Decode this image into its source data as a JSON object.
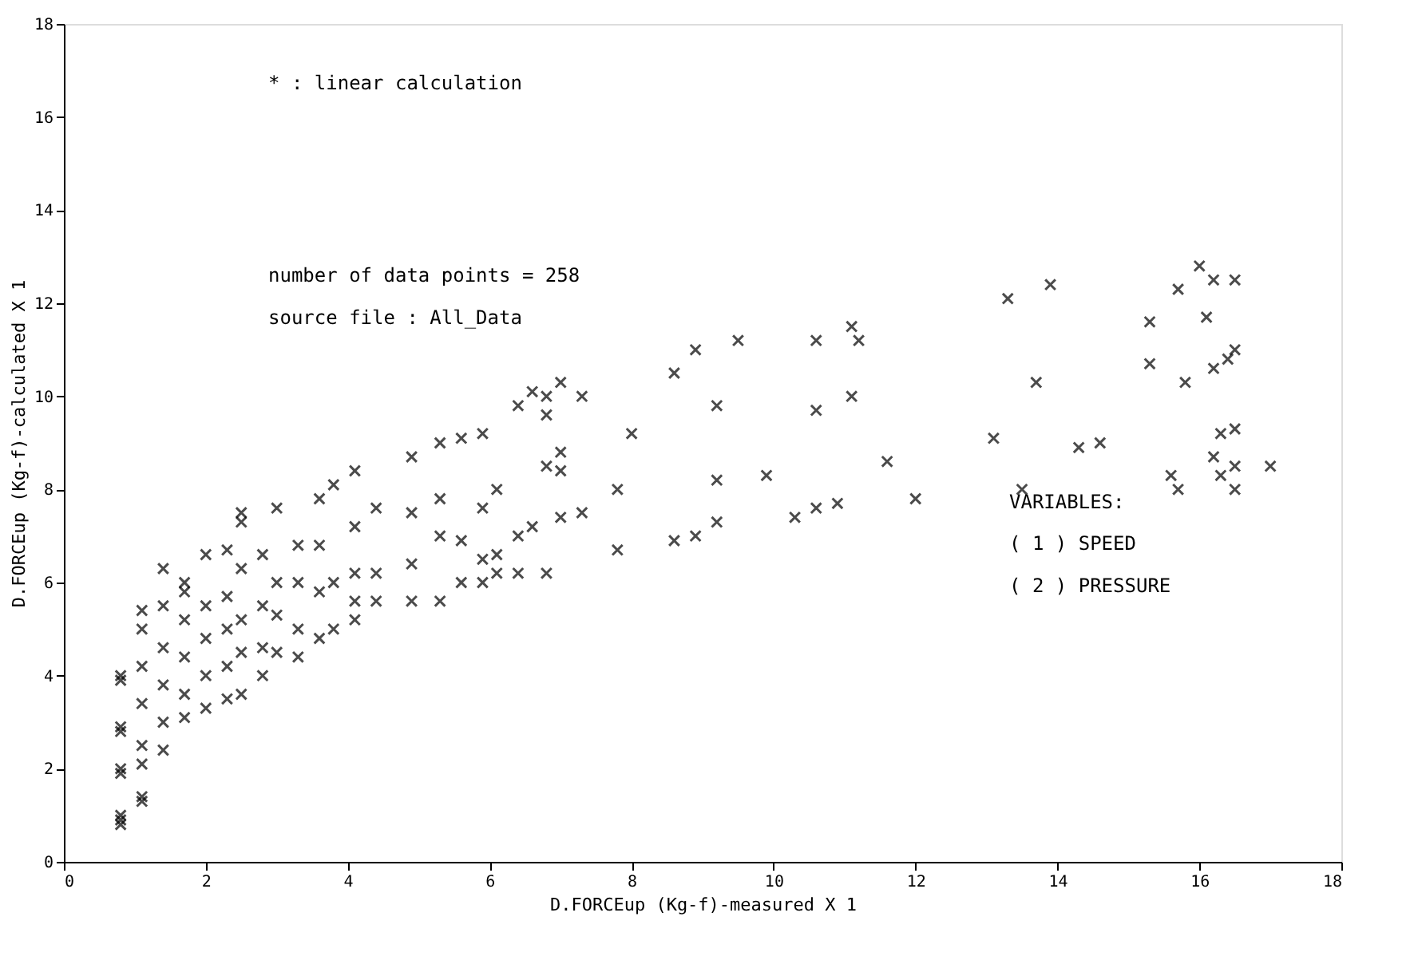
{
  "chart_data": {
    "type": "scatter",
    "xlabel": "D.FORCEup (Kg-f)-measured X 1",
    "ylabel": "D.FORCEup (Kg-f)-calculated X 1",
    "annotations": [
      "* : linear calculation",
      "number of data points = 258",
      "source file : All_Data",
      "VARIABLES:",
      "( 1 ) SPEED",
      "( 2 ) PRESSURE"
    ],
    "xlim": [
      0,
      18
    ],
    "ylim": [
      0,
      18
    ],
    "xticks": [
      0,
      2,
      4,
      6,
      8,
      10,
      12,
      14,
      16,
      18
    ],
    "yticks": [
      0,
      2,
      4,
      6,
      8,
      10,
      12,
      14,
      16,
      18
    ],
    "grid": false,
    "marker": "cross",
    "series": [
      {
        "color": "#000000",
        "x": [
          0.8,
          0.8,
          0.8,
          0.8,
          0.8,
          0.8,
          0.8,
          0.8,
          0.8,
          1.1,
          1.1,
          1.1,
          1.1,
          1.1,
          1.1,
          1.1,
          1.1,
          1.4,
          1.4,
          1.4,
          1.4,
          1.4,
          1.4,
          1.7,
          1.7,
          1.7,
          1.7,
          1.7,
          1.7,
          2.0,
          2.0,
          2.0,
          2.0,
          2.0,
          2.3,
          2.3,
          2.3,
          2.3,
          2.3,
          2.5,
          2.5,
          2.5,
          2.5,
          2.5,
          2.5,
          2.8,
          2.8,
          2.8,
          2.8,
          3.0,
          3.0,
          3.0,
          3.0,
          3.3,
          3.3,
          3.3,
          3.3,
          3.6,
          3.6,
          3.6,
          3.6,
          3.8,
          3.8,
          3.8,
          4.1,
          4.1,
          4.1,
          4.1,
          4.1,
          4.4,
          4.4,
          4.4,
          4.9,
          4.9,
          4.9,
          4.9,
          5.3,
          5.3,
          5.3,
          5.3,
          5.6,
          5.6,
          5.6,
          5.9,
          5.9,
          5.9,
          5.9,
          6.1,
          6.1,
          6.1,
          6.4,
          6.4,
          6.4,
          6.6,
          6.6,
          6.8,
          6.8,
          6.8,
          6.8,
          7.0,
          7.0,
          7.0,
          7.0,
          7.3,
          7.3,
          7.8,
          7.8,
          8.0,
          8.6,
          8.6,
          8.9,
          8.9,
          9.2,
          9.2,
          9.2,
          9.5,
          9.9,
          10.3,
          10.6,
          10.6,
          10.6,
          10.9,
          11.1,
          11.1,
          11.2,
          11.6,
          12.0,
          13.1,
          13.3,
          13.5,
          13.7,
          13.9,
          14.3,
          14.6,
          15.3,
          15.3,
          15.6,
          15.7,
          15.7,
          15.8,
          16.0,
          16.1,
          16.2,
          16.2,
          16.2,
          16.3,
          16.3,
          16.4,
          16.5,
          16.5,
          16.5,
          16.5,
          16.5,
          17.0
        ],
        "values": [
          0.8,
          0.9,
          1.0,
          1.9,
          2.0,
          2.8,
          2.9,
          3.9,
          4.0,
          1.3,
          1.4,
          2.1,
          2.5,
          3.4,
          4.2,
          5.0,
          5.4,
          2.4,
          3.0,
          3.8,
          4.6,
          5.5,
          6.3,
          3.1,
          3.6,
          4.4,
          5.2,
          5.8,
          6.0,
          3.3,
          4.0,
          4.8,
          5.5,
          6.6,
          3.5,
          4.2,
          5.0,
          5.7,
          6.7,
          3.6,
          4.5,
          5.2,
          6.3,
          7.3,
          7.5,
          4.0,
          4.6,
          5.5,
          6.6,
          4.5,
          5.3,
          6.0,
          7.6,
          4.4,
          5.0,
          6.0,
          6.8,
          4.8,
          5.8,
          6.8,
          7.8,
          5.0,
          6.0,
          8.1,
          5.2,
          5.6,
          6.2,
          7.2,
          8.4,
          5.6,
          6.2,
          7.6,
          5.6,
          6.4,
          7.5,
          8.7,
          5.6,
          7.0,
          7.8,
          9.0,
          6.0,
          6.9,
          9.1,
          6.0,
          6.5,
          7.6,
          9.2,
          6.2,
          6.6,
          8.0,
          6.2,
          7.0,
          9.8,
          10.1,
          7.2,
          6.2,
          8.5,
          9.6,
          10.0,
          7.4,
          8.4,
          8.8,
          10.3,
          7.5,
          10.0,
          6.7,
          8.0,
          9.2,
          10.5,
          6.9,
          11.0,
          7.0,
          8.2,
          9.8,
          7.3,
          11.2,
          8.3,
          7.4,
          11.2,
          9.7,
          7.6,
          7.7,
          10.0,
          11.5,
          11.2,
          8.6,
          7.8,
          9.1,
          12.1,
          8.0,
          10.3,
          12.4,
          8.9,
          9.0,
          11.6,
          10.7,
          8.3,
          8.0,
          12.3,
          10.3,
          12.8,
          11.7,
          10.6,
          8.7,
          12.5,
          9.2,
          8.3,
          10.8,
          12.5,
          11.0,
          9.3,
          8.5,
          8.0,
          8.5
        ]
      }
    ]
  }
}
